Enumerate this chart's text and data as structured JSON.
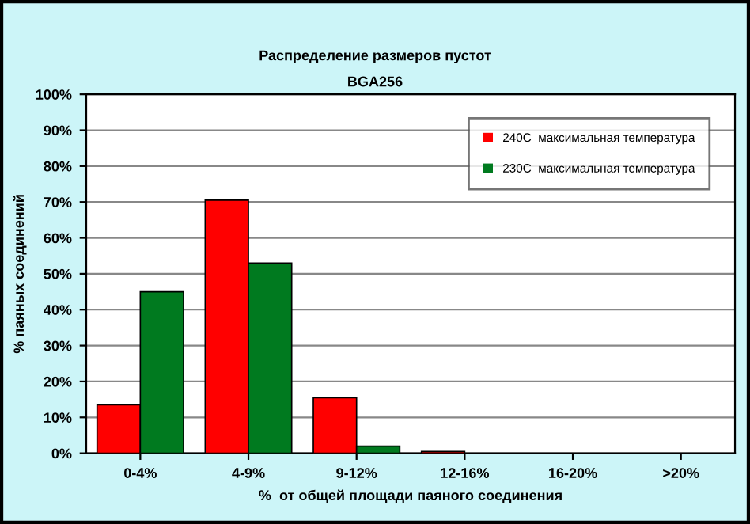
{
  "chart_data": {
    "type": "bar",
    "title": "Распределение размеров пустот",
    "subtitle": "BGA256",
    "xlabel": "%  от общей площади паяного соединения",
    "ylabel": "% паяных соединений",
    "categories": [
      "0-4%",
      "4-9%",
      "9-12%",
      "12-16%",
      "16-20%",
      ">20%"
    ],
    "series": [
      {
        "name": "240C  максимальная температура",
        "color": "#ff0000",
        "values": [
          13.5,
          70.5,
          15.5,
          0.5,
          0,
          0
        ]
      },
      {
        "name": "230C  максимальная температура",
        "color": "#007a1f",
        "values": [
          45,
          53,
          2,
          0,
          0,
          0
        ]
      }
    ],
    "ylim": [
      0,
      100
    ],
    "yticks": [
      {
        "value": 0,
        "label": "0%"
      },
      {
        "value": 10,
        "label": "10%"
      },
      {
        "value": 20,
        "label": "20%"
      },
      {
        "value": 30,
        "label": "30%"
      },
      {
        "value": 40,
        "label": "40%"
      },
      {
        "value": 50,
        "label": "50%"
      },
      {
        "value": 60,
        "label": "60%"
      },
      {
        "value": 70,
        "label": "70%"
      },
      {
        "value": 80,
        "label": "80%"
      },
      {
        "value": 90,
        "label": "90%"
      },
      {
        "value": 100,
        "label": "100%"
      }
    ],
    "grid": "y",
    "legend": "top right"
  }
}
